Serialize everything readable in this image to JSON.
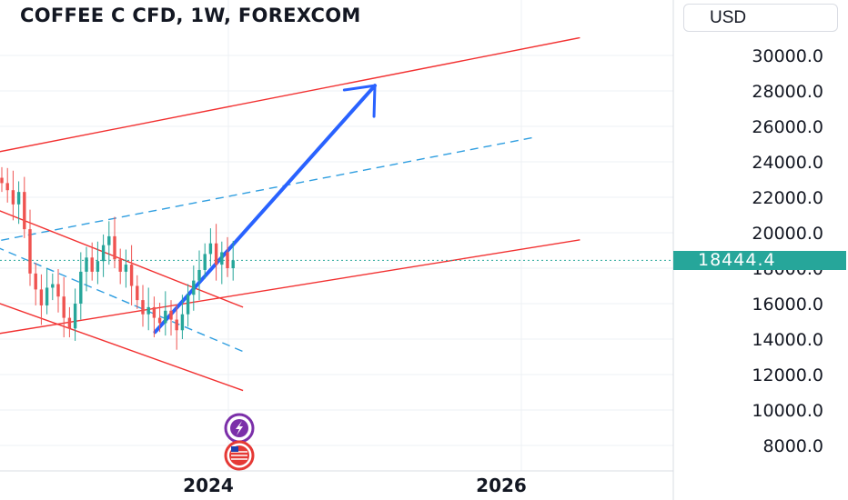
{
  "chart_title": "COFFEE C CFD, 1W, FOREXCOM",
  "currency_label": "USD",
  "current_price_label": "18444.4",
  "colors": {
    "up_candle": "#26a69a",
    "down_candle": "#ef5350",
    "channel_lines": "#f23030",
    "mid_dashed": "#2f9ee0",
    "arrow": "#2962ff",
    "event_purple": "#7b2fa9",
    "event_red": "#e53935"
  },
  "event_icons": [
    "lightning-bolt-icon",
    "us-flag-icon"
  ],
  "chart_data": {
    "type": "candlestick",
    "title": "COFFEE C CFD, 1W, FOREXCOM",
    "xlabel": "",
    "ylabel": "",
    "y_axis_ticks": [
      "30000.0",
      "28000.0",
      "26000.0",
      "24000.0",
      "22000.0",
      "20000.0",
      "18000.0",
      "16000.0",
      "14000.0",
      "12000.0",
      "10000.0",
      "8000.0"
    ],
    "x_axis_ticks": [
      "2024",
      "2026"
    ],
    "current_price": 18444.4,
    "grid": true,
    "close_series_estimate": [
      22800,
      22400,
      21600,
      22300,
      20200,
      17700,
      16800,
      15900,
      16900,
      17100,
      16400,
      15200,
      14600,
      16000,
      17800,
      18600,
      17800,
      18400,
      19300,
      19800,
      18500,
      17800,
      18200,
      17000,
      16200,
      15400,
      15800,
      15200,
      14900,
      15600,
      15100,
      14500,
      15400,
      16500,
      17300,
      17900,
      18800,
      19400,
      18200,
      18900,
      18000,
      18444.4
    ],
    "drawings": [
      {
        "name": "upper-channel-line",
        "style": "solid",
        "from": [
          2021.9,
          23700
        ],
        "to": [
          2026.4,
          31000
        ]
      },
      {
        "name": "lower-channel-line",
        "style": "solid",
        "from": [
          2021.9,
          13600
        ],
        "to": [
          2026.4,
          19600
        ]
      },
      {
        "name": "channel-midline",
        "style": "dashed",
        "from": [
          2021.9,
          18700
        ],
        "to": [
          2026.1,
          25400
        ]
      },
      {
        "name": "descending-channel-top",
        "style": "solid",
        "from": [
          2021.9,
          23000
        ],
        "to": [
          2024.1,
          15800
        ]
      },
      {
        "name": "descending-channel-bottom",
        "style": "solid",
        "from": [
          2021.9,
          17600
        ],
        "to": [
          2024.1,
          11100
        ]
      },
      {
        "name": "descending-midline",
        "style": "dashed",
        "from": [
          2021.9,
          21000
        ],
        "to": [
          2024.1,
          13300
        ]
      },
      {
        "name": "projection-arrow",
        "style": "arrow",
        "from": [
          2023.5,
          14400
        ],
        "to": [
          2025.0,
          28300
        ]
      }
    ]
  }
}
